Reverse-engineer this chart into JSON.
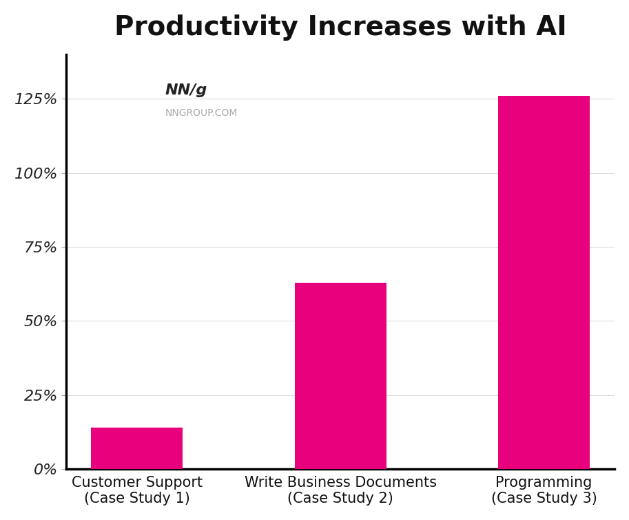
{
  "title": "Productivity Increases with AI",
  "categories": [
    "Customer Support\n(Case Study 1)",
    "Write Business Documents\n(Case Study 2)",
    "Programming\n(Case Study 3)"
  ],
  "values": [
    14,
    63,
    126
  ],
  "bar_color": "#E8007D",
  "background_color": "#FFFFFF",
  "yticks": [
    0,
    25,
    50,
    75,
    100,
    125
  ],
  "ylim": [
    0,
    140
  ],
  "title_fontsize": 28,
  "tick_fontsize": 16,
  "xlabel_fontsize": 15,
  "watermark_main": "NN/g",
  "watermark_sub": "NNGROUP.COM",
  "axis_color": "#000000",
  "tick_color": "#888888"
}
